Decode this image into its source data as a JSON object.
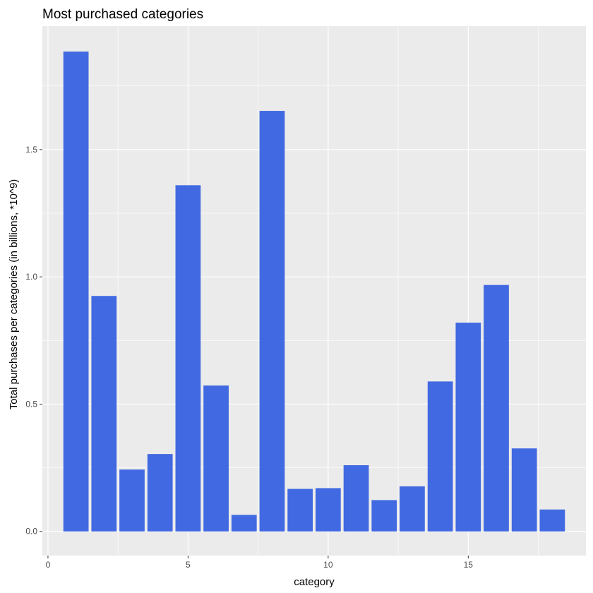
{
  "chart_data": {
    "type": "bar",
    "title": "Most purchased categories",
    "xlabel": "category",
    "ylabel": "Total purchases per categories (in billions, *10^9)",
    "x": [
      1,
      2,
      3,
      4,
      5,
      6,
      7,
      8,
      9,
      10,
      11,
      12,
      13,
      14,
      15,
      16,
      17,
      18
    ],
    "values": [
      1.885,
      0.925,
      0.243,
      0.304,
      1.36,
      0.573,
      0.065,
      1.652,
      0.167,
      0.17,
      0.26,
      0.123,
      0.177,
      0.589,
      0.82,
      0.968,
      0.326,
      0.086
    ],
    "xlim": [
      -0.2,
      19.2
    ],
    "ylim": [
      -0.095,
      1.985
    ],
    "x_ticks": [
      0,
      5,
      10,
      15
    ],
    "x_tick_labels": [
      "0",
      "5",
      "10",
      "15"
    ],
    "y_ticks": [
      0.0,
      0.5,
      1.0,
      1.5
    ],
    "y_tick_labels": [
      "0.0",
      "0.5",
      "1.0",
      "1.5"
    ],
    "grid": true,
    "bar_color": "#4169E1",
    "panel_color": "#EBEBEB",
    "grid_color": "#FFFFFF"
  }
}
